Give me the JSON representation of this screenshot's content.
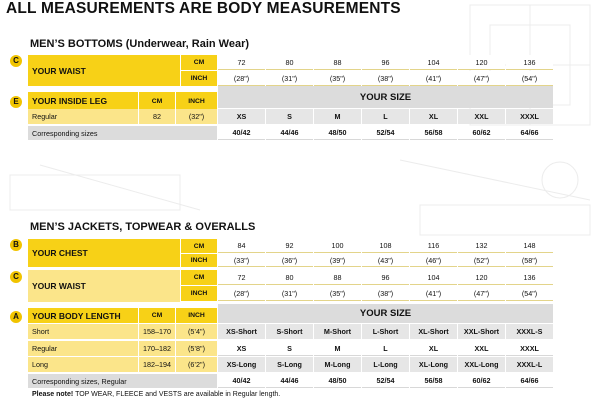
{
  "title": "ALL MEASUREMENTS ARE BODY MEASUREMENTS",
  "bottoms": {
    "section_title": "MEN’S BOTTOMS (Underwear, Rain Wear)",
    "waist": {
      "badge": "C",
      "label": "YOUR WAIST",
      "cm_label": "CM",
      "inch_label": "INCH",
      "cm": [
        "72",
        "80",
        "88",
        "96",
        "104",
        "120",
        "136"
      ],
      "inch": [
        "(28\")",
        "(31\")",
        "(35\")",
        "(38\")",
        "(41\")",
        "(47\")",
        "(54\")"
      ]
    },
    "inside_leg": {
      "badge": "E",
      "label": "YOUR INSIDE LEG",
      "cm_label": "CM",
      "inch_label": "INCH",
      "your_size_label": "YOUR SIZE",
      "sizes": [
        "XS",
        "S",
        "M",
        "L",
        "XL",
        "XXL",
        "XXXL"
      ],
      "regular_label": "Regular",
      "regular_cm": "82",
      "regular_inch": "(32\")"
    },
    "corresponding_label": "Corresponding sizes",
    "corresponding": [
      "40/42",
      "44/46",
      "48/50",
      "52/54",
      "56/58",
      "60/62",
      "64/66"
    ]
  },
  "jackets": {
    "section_title": "MEN’S JACKETS, TOPWEAR & OVERALLS",
    "chest": {
      "badge": "B",
      "label": "YOUR CHEST",
      "cm_label": "CM",
      "inch_label": "INCH",
      "cm": [
        "84",
        "92",
        "100",
        "108",
        "116",
        "132",
        "148"
      ],
      "inch": [
        "(33\")",
        "(36\")",
        "(39\")",
        "(43\")",
        "(46\")",
        "(52\")",
        "(58\")"
      ]
    },
    "waist": {
      "badge": "C",
      "label": "YOUR WAIST",
      "cm_label": "CM",
      "inch_label": "INCH",
      "cm": [
        "72",
        "80",
        "88",
        "96",
        "104",
        "120",
        "136"
      ],
      "inch": [
        "(28\")",
        "(31\")",
        "(35\")",
        "(38\")",
        "(41\")",
        "(47\")",
        "(54\")"
      ]
    },
    "body_length": {
      "badge": "A",
      "label": "YOUR BODY LENGTH",
      "cm_label": "CM",
      "inch_label": "INCH",
      "your_size_label": "YOUR SIZE",
      "rows": [
        {
          "label": "Short",
          "cm": "158–170",
          "inch": "(5’4\")",
          "sizes": [
            "XS-Short",
            "S-Short",
            "M-Short",
            "L-Short",
            "XL-Short",
            "XXL-Short",
            "XXXL-S"
          ]
        },
        {
          "label": "Regular",
          "cm": "170–182",
          "inch": "(5’8\")",
          "sizes": [
            "XS",
            "S",
            "M",
            "L",
            "XL",
            "XXL",
            "XXXL"
          ]
        },
        {
          "label": "Long",
          "cm": "182–194",
          "inch": "(6’2\")",
          "sizes": [
            "XS-Long",
            "S-Long",
            "M-Long",
            "L-Long",
            "XL-Long",
            "XXL-Long",
            "XXXL-L"
          ]
        }
      ]
    },
    "corresponding_label": "Corresponding sizes, Regular",
    "corresponding": [
      "40/42",
      "44/46",
      "48/50",
      "52/54",
      "56/58",
      "60/62",
      "64/66"
    ]
  },
  "note": {
    "prefix": "Please note!",
    "text": " TOP WEAR, FLEECE and VESTS are available in Regular length."
  },
  "colors": {
    "yellow": "#f7d117",
    "light_yellow": "#fbe58a",
    "badge": "#f1c400",
    "gray": "#dcdcdc"
  }
}
